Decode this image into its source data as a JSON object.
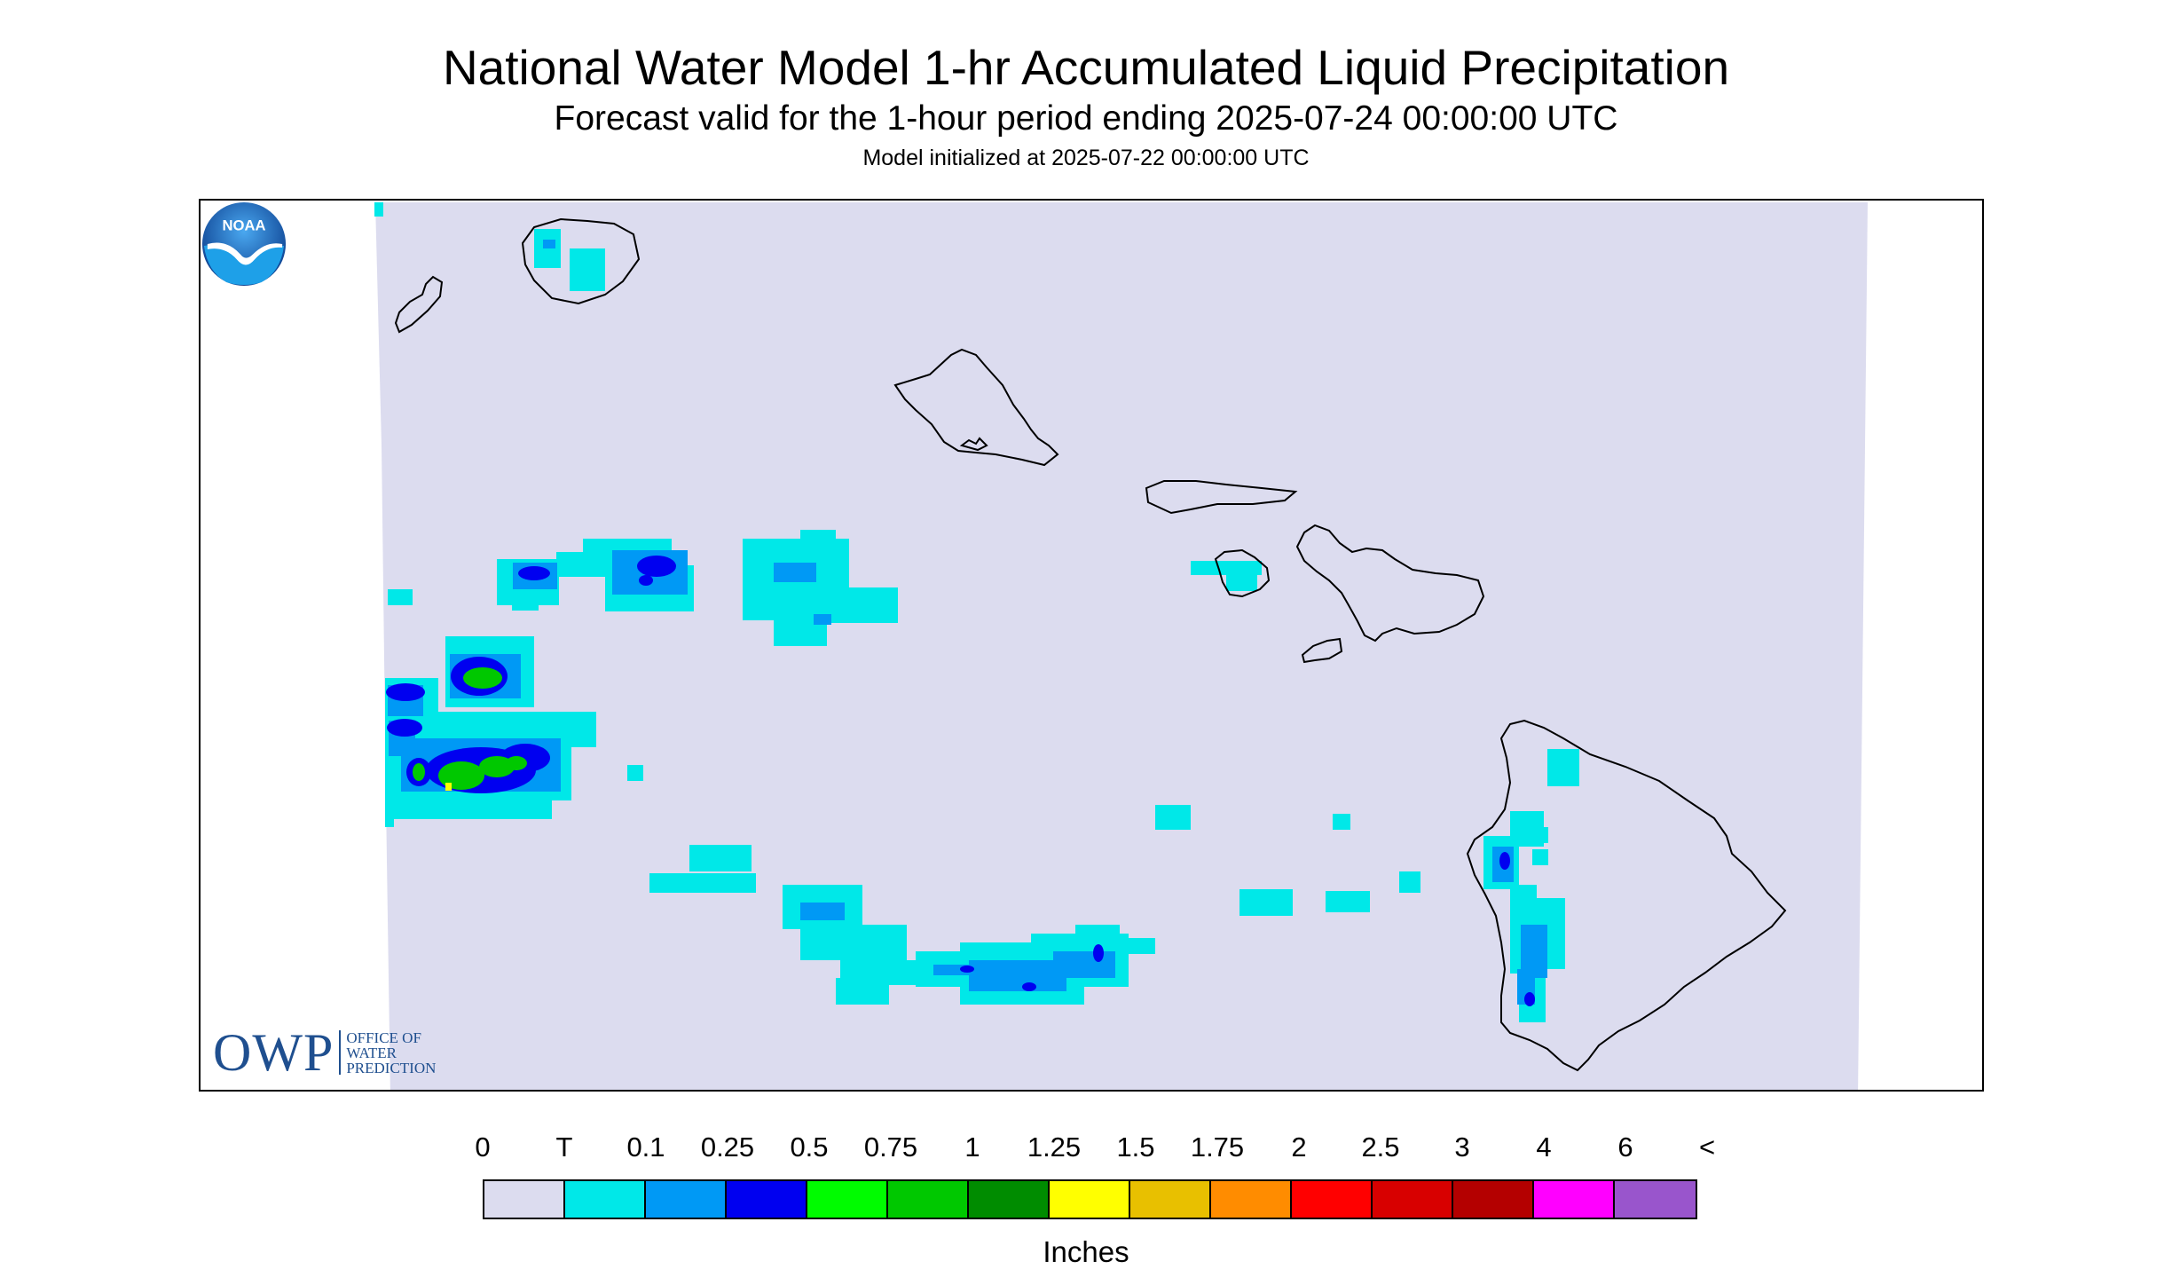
{
  "header": {
    "title": "National Water Model 1-hr Accumulated Liquid Precipitation",
    "subtitle": "Forecast valid for the 1-hour period ending 2025-07-24 00:00:00 UTC",
    "init": "Model initialized at 2025-07-22 00:00:00 UTC"
  },
  "logos": {
    "owp_big": "OWP",
    "owp_lines": [
      "OFFICE OF",
      "WATER",
      "PREDICTION"
    ],
    "noaa": "NOAA"
  },
  "colors": {
    "background": "#dcdcef",
    "coastline": "#000000",
    "owp_blue": "#1f4f8f"
  },
  "legend": {
    "labels": [
      "0",
      "T",
      "0.1",
      "0.25",
      "0.5",
      "0.75",
      "1",
      "1.25",
      "1.5",
      "1.75",
      "2",
      "2.5",
      "3",
      "4",
      "6",
      "<"
    ],
    "colors": [
      "#dcdcef",
      "#00e8e8",
      "#0099f5",
      "#0000f0",
      "#00fc00",
      "#00c800",
      "#008c00",
      "#ffff00",
      "#e8c000",
      "#ff8c00",
      "#ff0000",
      "#d80000",
      "#b40000",
      "#ff00ff",
      "#9955cc"
    ],
    "units": "Inches"
  }
}
